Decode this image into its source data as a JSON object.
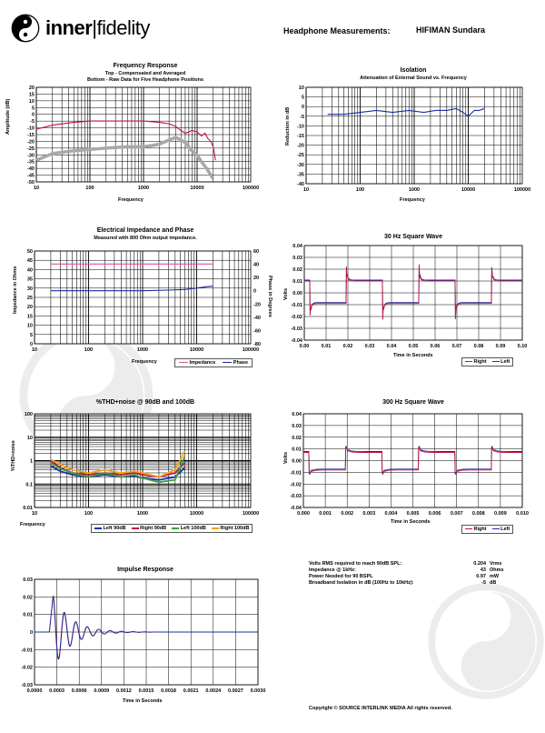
{
  "header": {
    "logo_left": "inner",
    "logo_right": "fidelity",
    "heading": "Headphone Measurements:",
    "model": "HIFIMAN Sundara"
  },
  "charts": {
    "fr": {
      "title": "Frequency Response",
      "subtitle1": "Top - Compensated and Averaged",
      "subtitle2": "Bottom - Raw Data for Five Headphone Positions",
      "xlabel": "Frequency",
      "ylabel": "Amplitude (dB)"
    },
    "iso": {
      "title": "Isolation",
      "subtitle1": "Attenuation of External Sound vs. Frequency",
      "xlabel": "Frequency",
      "ylabel": "Reduction in dB"
    },
    "imp": {
      "title": "Electrical Impedance and Phase",
      "subtitle1": "Measured with 800 Ohm output impedance.",
      "xlabel": "Frequency",
      "ylabel": "Impedance in Ohms",
      "y2label": "Phase in Degrees",
      "legend": [
        "Impedance",
        "Phase"
      ]
    },
    "sq30": {
      "title": "30 Hz Square Wave",
      "xlabel": "Time in Seconds",
      "ylabel": "Volts",
      "legend": [
        "Right",
        "Left"
      ]
    },
    "thd": {
      "title": "%THD+noise @ 90dB and 100dB",
      "xlabel": "Frequency",
      "ylabel": "%THD+noise",
      "legend": [
        "Left 90dB",
        "Right 90dB",
        "Left 100dB",
        "Right 100dB"
      ]
    },
    "sq300": {
      "title": "300 Hz Square Wave",
      "xlabel": "Time in Seconds",
      "ylabel": "Volts",
      "legend": [
        "Right",
        "Left"
      ]
    },
    "ir": {
      "title": "Impulse Response",
      "xlabel": "Time in Seconds"
    }
  },
  "chart_data": [
    {
      "id": "fr",
      "type": "line",
      "xscale": "log",
      "xlim": [
        10,
        100000
      ],
      "ylim": [
        -50,
        20
      ],
      "xticks": [
        "10",
        "100",
        "1000",
        "10000",
        "100000"
      ],
      "yticks": [
        "20",
        "15",
        "10",
        "5",
        "0",
        "-5",
        "-10",
        "-15",
        "-20",
        "-25",
        "-30",
        "-35",
        "-40",
        "-45",
        "-50"
      ],
      "series": [
        {
          "color": "#c0143c",
          "x": [
            10,
            20,
            50,
            100,
            200,
            500,
            1000,
            2000,
            3000,
            4000,
            5000,
            6000,
            7000,
            8000,
            10000,
            12000,
            14000,
            16000,
            18000,
            20000,
            22000
          ],
          "y": [
            -11,
            -8,
            -6,
            -5,
            -5,
            -5,
            -5,
            -6,
            -7,
            -9,
            -12,
            -14,
            -13,
            -12,
            -13,
            -16,
            -14,
            -18,
            -20,
            -24,
            -34
          ]
        },
        {
          "color": "#a8a8a8",
          "x": [
            10,
            20,
            50,
            100,
            200,
            500,
            1000,
            1500,
            2000,
            3000,
            4000,
            5000,
            6000,
            7000,
            8000,
            10000,
            12000,
            15000,
            18000,
            20000
          ],
          "y": [
            -34,
            -29,
            -27,
            -26,
            -25,
            -24,
            -24,
            -23,
            -22,
            -19,
            -17,
            -19,
            -21,
            -24,
            -27,
            -30,
            -35,
            -40,
            -45,
            -48
          ]
        }
      ]
    },
    {
      "id": "iso",
      "type": "line",
      "xscale": "log",
      "xlim": [
        10,
        100000
      ],
      "ylim": [
        -40,
        10
      ],
      "xticks": [
        "10",
        "100",
        "1000",
        "10000",
        "100000"
      ],
      "yticks": [
        "10",
        "5",
        "0",
        "-5",
        "-10",
        "-15",
        "-20",
        "-25",
        "-30",
        "-35",
        "-40"
      ],
      "series": [
        {
          "color": "#1a2fa0",
          "x": [
            25,
            50,
            100,
            200,
            400,
            800,
            1500,
            2500,
            4000,
            6000,
            8000,
            10000,
            13000,
            16000,
            20000
          ],
          "y": [
            -4,
            -4,
            -3,
            -2,
            -3,
            -2,
            -3,
            -2,
            -2,
            -1,
            -3,
            -5,
            -2,
            -2,
            -1
          ]
        }
      ]
    },
    {
      "id": "imp",
      "type": "line",
      "xscale": "log",
      "xlim": [
        10,
        100000
      ],
      "ylim": [
        0,
        50
      ],
      "y2lim": [
        -80,
        60
      ],
      "xticks": [
        "10",
        "100",
        "1000",
        "10000",
        "100000"
      ],
      "yticks": [
        "50",
        "45",
        "40",
        "35",
        "30",
        "25",
        "20",
        "15",
        "10",
        "5",
        "0"
      ],
      "y2ticks": [
        "60",
        "40",
        "20",
        "0",
        "-20",
        "-40",
        "-60",
        "-80"
      ],
      "series": [
        {
          "name": "Impedance",
          "color": "#e0509a",
          "x": [
            20,
            100,
            1000,
            10000,
            20000
          ],
          "y": [
            43,
            43,
            43,
            43,
            43
          ]
        },
        {
          "name": "Phase",
          "color": "#1a2fa0",
          "axis": "y2",
          "x": [
            20,
            100,
            1000,
            3000,
            6000,
            10000,
            15000,
            20000
          ],
          "y": [
            0,
            0,
            0,
            1,
            2,
            4,
            6,
            7
          ]
        }
      ]
    },
    {
      "id": "sq30",
      "type": "line",
      "xlim": [
        0,
        0.1
      ],
      "ylim": [
        -0.04,
        0.04
      ],
      "xticks": [
        "0.00",
        "0.01",
        "0.02",
        "0.03",
        "0.04",
        "0.05",
        "0.06",
        "0.07",
        "0.08",
        "0.09",
        "0.10"
      ],
      "yticks": [
        "0.04",
        "0.03",
        "0.02",
        "0.01",
        "0.00",
        "-0.01",
        "-0.02",
        "-0.03",
        "-0.04"
      ],
      "period": 0.0333,
      "high": 0.01,
      "low": -0.009,
      "peak": 0.025,
      "series": [
        {
          "name": "Right",
          "color": "#c0143c"
        },
        {
          "name": "Left",
          "color": "#1a2fa0"
        }
      ]
    },
    {
      "id": "thd",
      "type": "line",
      "xscale": "log",
      "yscale": "log",
      "xlim": [
        10,
        100000
      ],
      "ylim": [
        0.01,
        100
      ],
      "xticks": [
        "10",
        "100",
        "1000",
        "10000",
        "100000"
      ],
      "yticks": [
        "100",
        "10",
        "1",
        "0.1",
        "0.01"
      ],
      "series": [
        {
          "name": "Left 90dB",
          "color": "#1a2fa0",
          "x": [
            20,
            30,
            50,
            100,
            200,
            400,
            700,
            1000,
            2000,
            4000,
            6000
          ],
          "y": [
            0.6,
            0.35,
            0.25,
            0.2,
            0.25,
            0.2,
            0.22,
            0.18,
            0.15,
            0.2,
            0.5
          ]
        },
        {
          "name": "Right 90dB",
          "color": "#c0143c",
          "x": [
            20,
            30,
            50,
            100,
            200,
            400,
            700,
            1000,
            2000,
            4000,
            6000
          ],
          "y": [
            1.0,
            0.5,
            0.3,
            0.25,
            0.3,
            0.25,
            0.3,
            0.25,
            0.2,
            0.3,
            0.8
          ]
        },
        {
          "name": "Left 100dB",
          "color": "#3aa040",
          "x": [
            20,
            30,
            50,
            100,
            200,
            400,
            700,
            1000,
            2000,
            4000,
            6000
          ],
          "y": [
            0.8,
            0.45,
            0.3,
            0.2,
            0.3,
            0.2,
            0.25,
            0.18,
            0.12,
            0.15,
            1.5
          ]
        },
        {
          "name": "Right 100dB",
          "color": "#f0a020",
          "x": [
            20,
            30,
            50,
            100,
            200,
            400,
            700,
            1000,
            2000,
            4000,
            6000
          ],
          "y": [
            1.1,
            0.7,
            0.4,
            0.3,
            0.4,
            0.3,
            0.35,
            0.3,
            0.2,
            0.4,
            2.5
          ]
        }
      ]
    },
    {
      "id": "sq300",
      "type": "line",
      "xlim": [
        0,
        0.01
      ],
      "ylim": [
        -0.04,
        0.04
      ],
      "xticks": [
        "0.000",
        "0.001",
        "0.002",
        "0.003",
        "0.004",
        "0.005",
        "0.006",
        "0.007",
        "0.008",
        "0.009",
        "0.010"
      ],
      "yticks": [
        "0.04",
        "0.03",
        "0.02",
        "0.01",
        "0.00",
        "-0.01",
        "-0.02",
        "-0.03",
        "-0.04"
      ],
      "period": 0.00333,
      "high": 0.007,
      "low": -0.008,
      "peak": 0.013,
      "series": [
        {
          "name": "Right",
          "color": "#c0143c"
        },
        {
          "name": "Left",
          "color": "#1a2fa0"
        }
      ]
    },
    {
      "id": "ir",
      "type": "line",
      "xlim": [
        0,
        0.003
      ],
      "ylim": [
        -0.03,
        0.03
      ],
      "xticks": [
        "0.0000",
        "0.0003",
        "0.0006",
        "0.0009",
        "0.0012",
        "0.0015",
        "0.0018",
        "0.0021",
        "0.0024",
        "0.0027",
        "0.0030"
      ],
      "yticks": [
        "0.03",
        "0.02",
        "0.01",
        "0",
        "-0.01",
        "-0.02",
        "-0.03"
      ],
      "series": [
        {
          "color": "#c0143c"
        },
        {
          "color": "#1a2fa0"
        }
      ]
    }
  ],
  "specs": [
    {
      "label": "Volts RMS required to reach 90dB SPL:",
      "value": "0.204",
      "unit": "Vrms"
    },
    {
      "label": "Impedance @ 1kHz:",
      "value": "43",
      "unit": "Ohms"
    },
    {
      "label": "Power Needed for 90 BSPL",
      "value": "0.97",
      "unit": "mW"
    },
    {
      "label": "Broadband Isolation in dB (100Hz to 10kHz):",
      "value": "-5",
      "unit": "dB"
    }
  ],
  "footer": "Copyright © SOURCE INTERLINK MEDIA All rights reserved."
}
